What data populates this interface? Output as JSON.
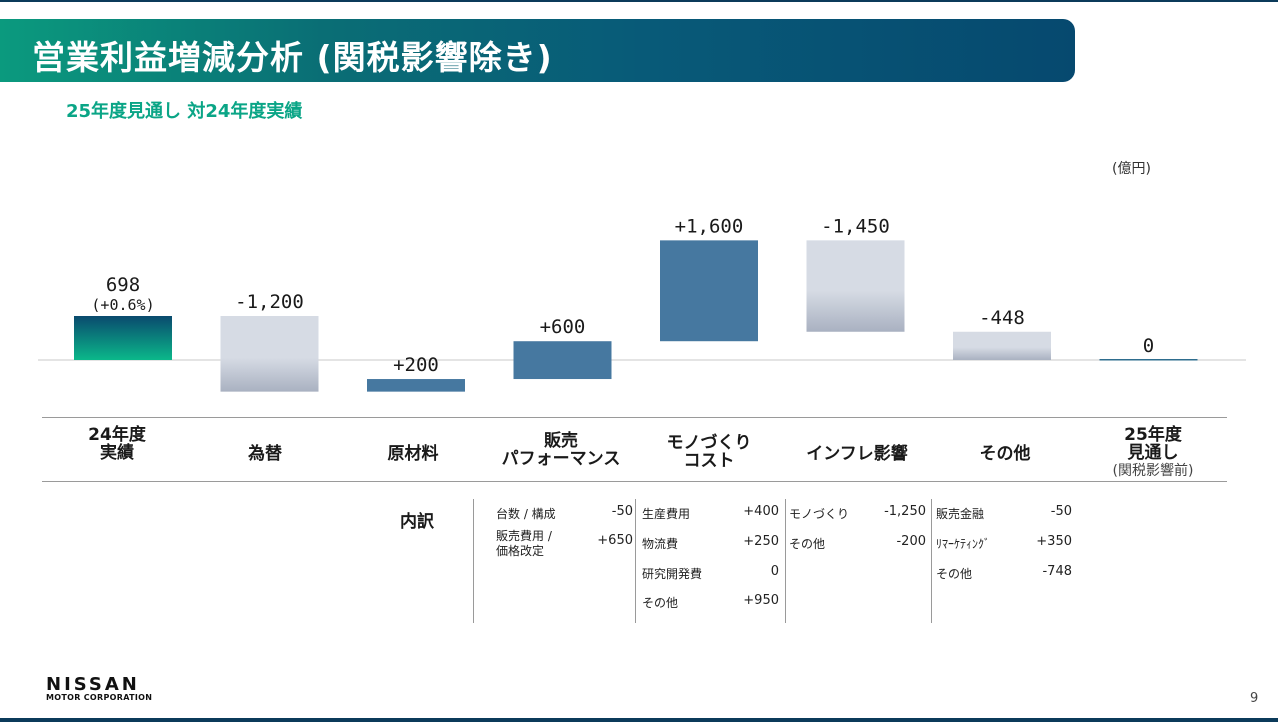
{
  "title": "営業利益増減分析 (関税影響除き)",
  "subtitle": "25年度見通し 対24年度実績",
  "unit": "(億円)",
  "chart_data": {
    "type": "waterfall",
    "title": "営業利益増減分析 (関税影響除き)",
    "unit": "億円",
    "categories": [
      "24年度 実績",
      "為替",
      "原材料",
      "販売 パフォーマンス",
      "モノづくり コスト",
      "インフレ影響",
      "その他",
      "25年度 見通し (関税影響前)"
    ],
    "values": [
      698,
      -1200,
      200,
      600,
      1600,
      -1450,
      -448,
      0
    ],
    "kinds": [
      "total",
      "delta",
      "delta",
      "delta",
      "delta",
      "delta",
      "delta",
      "total"
    ],
    "value_labels": [
      "698",
      "-1,200",
      "+200",
      "+600",
      "+1,600",
      "-1,450",
      "-448",
      "0"
    ],
    "start_note": "(+0.6%)",
    "ylim": [
      -700,
      1600
    ]
  },
  "colors": {
    "start_bar_top": "#0a4a6e",
    "start_bar_bottom": "#0bb88a",
    "increase": "#4678a0",
    "decrease_top": "#d6dbe4",
    "decrease_bottom": "#a9b1c1",
    "baseline": "#c8c8c8",
    "end_bar": "#2e6d8e"
  },
  "categories_display": [
    {
      "line1": "24年度",
      "line2": "実績"
    },
    {
      "line1": "為替"
    },
    {
      "line1": "原材料"
    },
    {
      "line1": "販売",
      "line2": "パフォーマンス"
    },
    {
      "line1": "モノづくり",
      "line2": "コスト"
    },
    {
      "line1": "インフレ影響"
    },
    {
      "line1": "その他"
    },
    {
      "line1": "25年度",
      "line2": "見通し",
      "note": "(関税影響前)"
    }
  ],
  "breakdown": {
    "label": "内訳",
    "sales": [
      {
        "label": "台数 / 構成",
        "value": "-50"
      },
      {
        "label1": "販売費用 /",
        "label2": "価格改定",
        "value": "+650"
      }
    ],
    "cost": [
      {
        "label": "生産費用",
        "value": "+400"
      },
      {
        "label": "物流費",
        "value": "+250"
      },
      {
        "label": "研究開発費",
        "value": "0"
      },
      {
        "label": "その他",
        "value": "+950"
      }
    ],
    "inflation": [
      {
        "label": "モノづくり",
        "value": "-1,250"
      },
      {
        "label": "その他",
        "value": "-200"
      }
    ],
    "other": [
      {
        "label": "販売金融",
        "value": "-50"
      },
      {
        "label": "ﾘﾏｰｹﾃｨﾝｸﾞ",
        "value": "+350"
      },
      {
        "label": "その他",
        "value": "-748"
      }
    ]
  },
  "logo": {
    "main": "NISSAN",
    "sub": "MOTOR CORPORATION"
  },
  "page_number": "9"
}
